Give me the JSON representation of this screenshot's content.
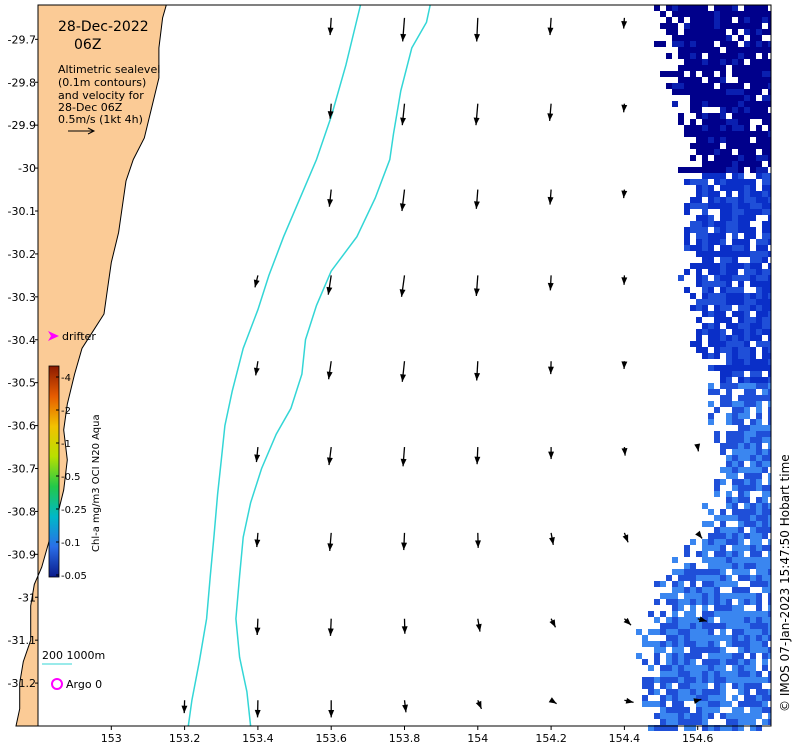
{
  "header": {
    "date": "28-Dec-2022",
    "time": "06Z"
  },
  "info_lines": [
    "Altimetric sealevel",
    "(0.1m contours)",
    "and velocity for",
    "28-Dec 06Z",
    "0.5m/s (1kt 4h)"
  ],
  "legend": {
    "drifter_label": "drifter",
    "scale_label": "200  1000m",
    "argo_label": "Argo 0"
  },
  "colorbar": {
    "title": "Chl-a mg/m3 OCI N20 Aqua",
    "ticks": [
      "4",
      "2",
      "1",
      "0.5",
      "0.25",
      "0.1",
      "0.05"
    ],
    "colors": [
      "#8b1a00",
      "#e65c00",
      "#f2c200",
      "#b8e000",
      "#22c84a",
      "#00b8c8",
      "#2a6ee8",
      "#0a1a8a"
    ]
  },
  "credit": "© IMOS 07-Jan-2023 15:47:50 Hobart time",
  "colors": {
    "land": "#fbcb96",
    "contour": "#33d6d6",
    "ocean": "#ffffff",
    "chl_dark": "#00008b",
    "chl_mid": "#1f4fd8",
    "chl_light": "#3a86f0",
    "drifter": "#ff00ff",
    "argo": "#ff00ff"
  },
  "axes": {
    "x_range": [
      152.8,
      154.8
    ],
    "y_range": [
      -31.3,
      -29.62
    ],
    "x_ticks": [
      {
        "value": 153,
        "label": "153"
      },
      {
        "value": 153.2,
        "label": "153.2"
      },
      {
        "value": 153.4,
        "label": "153.4"
      },
      {
        "value": 153.6,
        "label": "153.6"
      },
      {
        "value": 153.8,
        "label": "153.8"
      },
      {
        "value": 154,
        "label": "154"
      },
      {
        "value": 154.2,
        "label": "154.2"
      },
      {
        "value": 154.4,
        "label": "154.4"
      },
      {
        "value": 154.6,
        "label": "154.6"
      }
    ],
    "y_ticks": [
      {
        "value": -29.7,
        "label": "-29.7"
      },
      {
        "value": -29.8,
        "label": "-29.8"
      },
      {
        "value": -29.9,
        "label": "-29.9"
      },
      {
        "value": -30,
        "label": "-30"
      },
      {
        "value": -30.1,
        "label": "-30.1"
      },
      {
        "value": -30.2,
        "label": "-30.2"
      },
      {
        "value": -30.3,
        "label": "-30.3"
      },
      {
        "value": -30.4,
        "label": "-30.4"
      },
      {
        "value": -30.5,
        "label": "-30.5"
      },
      {
        "value": -30.6,
        "label": "-30.6"
      },
      {
        "value": -30.7,
        "label": "-30.7"
      },
      {
        "value": -30.8,
        "label": "-30.8"
      },
      {
        "value": -30.9,
        "label": "-30.9"
      },
      {
        "value": -31,
        "label": "-31"
      },
      {
        "value": -31.1,
        "label": "-31.1"
      },
      {
        "value": -31.2,
        "label": "-31.2"
      }
    ]
  },
  "coast": [
    [
      153.15,
      -29.62
    ],
    [
      153.14,
      -29.65
    ],
    [
      153.13,
      -29.72
    ],
    [
      153.13,
      -29.79
    ],
    [
      153.11,
      -29.86
    ],
    [
      153.09,
      -29.93
    ],
    [
      153.06,
      -29.98
    ],
    [
      153.04,
      -30.03
    ],
    [
      153.03,
      -30.09
    ],
    [
      153.02,
      -30.15
    ],
    [
      153.0,
      -30.22
    ],
    [
      152.99,
      -30.28
    ],
    [
      152.98,
      -30.34
    ],
    [
      152.95,
      -30.38
    ],
    [
      152.92,
      -30.42
    ],
    [
      152.9,
      -30.48
    ],
    [
      152.88,
      -30.55
    ],
    [
      152.87,
      -30.61
    ],
    [
      152.88,
      -30.68
    ],
    [
      152.87,
      -30.75
    ],
    [
      152.85,
      -30.82
    ],
    [
      152.83,
      -30.87
    ],
    [
      152.81,
      -30.93
    ],
    [
      152.79,
      -30.97
    ],
    [
      152.78,
      -31.02
    ],
    [
      152.78,
      -31.1
    ],
    [
      152.76,
      -31.15
    ],
    [
      152.75,
      -31.2
    ],
    [
      152.75,
      -31.26
    ],
    [
      152.74,
      -31.3
    ]
  ],
  "contours": [
    [
      [
        153.68,
        -29.62
      ],
      [
        153.64,
        -29.76
      ],
      [
        153.6,
        -29.88
      ],
      [
        153.56,
        -29.98
      ],
      [
        153.52,
        -30.06
      ],
      [
        153.47,
        -30.16
      ],
      [
        153.43,
        -30.25
      ],
      [
        153.4,
        -30.33
      ],
      [
        153.36,
        -30.42
      ],
      [
        153.33,
        -30.52
      ],
      [
        153.31,
        -30.6
      ],
      [
        153.3,
        -30.68
      ],
      [
        153.29,
        -30.76
      ],
      [
        153.28,
        -30.86
      ],
      [
        153.27,
        -30.95
      ],
      [
        153.26,
        -31.05
      ],
      [
        153.24,
        -31.15
      ],
      [
        153.22,
        -31.24
      ],
      [
        153.21,
        -31.3
      ]
    ],
    [
      [
        153.87,
        -29.62
      ],
      [
        153.86,
        -29.66
      ],
      [
        153.82,
        -29.72
      ],
      [
        153.79,
        -29.82
      ],
      [
        153.77,
        -29.92
      ],
      [
        153.76,
        -29.98
      ],
      [
        153.72,
        -30.07
      ],
      [
        153.67,
        -30.16
      ],
      [
        153.6,
        -30.24
      ],
      [
        153.56,
        -30.32
      ],
      [
        153.53,
        -30.4
      ],
      [
        153.52,
        -30.48
      ],
      [
        153.49,
        -30.56
      ],
      [
        153.45,
        -30.62
      ],
      [
        153.41,
        -30.7
      ],
      [
        153.38,
        -30.78
      ],
      [
        153.36,
        -30.86
      ],
      [
        153.35,
        -30.95
      ],
      [
        153.34,
        -31.05
      ],
      [
        153.35,
        -31.14
      ],
      [
        153.37,
        -31.22
      ],
      [
        153.38,
        -31.3
      ]
    ]
  ],
  "vectors": [
    {
      "lon": 153.6,
      "lat": -29.65,
      "u": -0.003,
      "v": -0.04
    },
    {
      "lon": 153.8,
      "lat": -29.65,
      "u": -0.005,
      "v": -0.055
    },
    {
      "lon": 154.0,
      "lat": -29.65,
      "u": -0.003,
      "v": -0.055
    },
    {
      "lon": 154.2,
      "lat": -29.65,
      "u": -0.003,
      "v": -0.04
    },
    {
      "lon": 154.4,
      "lat": -29.65,
      "u": -0.002,
      "v": -0.025
    },
    {
      "lon": 153.6,
      "lat": -29.85,
      "u": -0.003,
      "v": -0.035
    },
    {
      "lon": 153.8,
      "lat": -29.85,
      "u": -0.006,
      "v": -0.05
    },
    {
      "lon": 154.0,
      "lat": -29.85,
      "u": -0.005,
      "v": -0.05
    },
    {
      "lon": 154.2,
      "lat": -29.85,
      "u": -0.004,
      "v": -0.04
    },
    {
      "lon": 154.4,
      "lat": -29.85,
      "u": -0.002,
      "v": -0.02
    },
    {
      "lon": 153.6,
      "lat": -30.05,
      "u": -0.005,
      "v": -0.04
    },
    {
      "lon": 153.8,
      "lat": -30.05,
      "u": -0.007,
      "v": -0.05
    },
    {
      "lon": 154.0,
      "lat": -30.05,
      "u": -0.004,
      "v": -0.045
    },
    {
      "lon": 154.2,
      "lat": -30.05,
      "u": -0.003,
      "v": -0.035
    },
    {
      "lon": 154.4,
      "lat": -30.05,
      "u": -0.002,
      "v": -0.02
    },
    {
      "lon": 153.4,
      "lat": -30.25,
      "u": -0.008,
      "v": -0.028
    },
    {
      "lon": 153.6,
      "lat": -30.25,
      "u": -0.008,
      "v": -0.045
    },
    {
      "lon": 153.8,
      "lat": -30.25,
      "u": -0.008,
      "v": -0.05
    },
    {
      "lon": 154.0,
      "lat": -30.25,
      "u": -0.004,
      "v": -0.048
    },
    {
      "lon": 154.2,
      "lat": -30.25,
      "u": -0.002,
      "v": -0.035
    },
    {
      "lon": 154.4,
      "lat": -30.25,
      "u": -0.001,
      "v": -0.022
    },
    {
      "lon": 153.4,
      "lat": -30.45,
      "u": -0.006,
      "v": -0.033
    },
    {
      "lon": 153.6,
      "lat": -30.45,
      "u": -0.007,
      "v": -0.042
    },
    {
      "lon": 153.8,
      "lat": -30.45,
      "u": -0.006,
      "v": -0.048
    },
    {
      "lon": 154.0,
      "lat": -30.45,
      "u": -0.003,
      "v": -0.045
    },
    {
      "lon": 154.2,
      "lat": -30.45,
      "u": -0.001,
      "v": -0.03
    },
    {
      "lon": 154.4,
      "lat": -30.45,
      "u": -0.001,
      "v": -0.018
    },
    {
      "lon": 153.4,
      "lat": -30.65,
      "u": -0.004,
      "v": -0.035
    },
    {
      "lon": 153.6,
      "lat": -30.65,
      "u": -0.006,
      "v": -0.042
    },
    {
      "lon": 153.8,
      "lat": -30.65,
      "u": -0.004,
      "v": -0.045
    },
    {
      "lon": 154.0,
      "lat": -30.65,
      "u": -0.002,
      "v": -0.04
    },
    {
      "lon": 154.2,
      "lat": -30.65,
      "u": 0.0,
      "v": -0.028
    },
    {
      "lon": 154.4,
      "lat": -30.65,
      "u": 0.002,
      "v": -0.02
    },
    {
      "lon": 154.6,
      "lat": -30.65,
      "u": 0.002,
      "v": -0.01
    },
    {
      "lon": 153.4,
      "lat": -30.85,
      "u": -0.003,
      "v": -0.033
    },
    {
      "lon": 153.6,
      "lat": -30.85,
      "u": -0.004,
      "v": -0.042
    },
    {
      "lon": 153.8,
      "lat": -30.85,
      "u": -0.002,
      "v": -0.04
    },
    {
      "lon": 154.0,
      "lat": -30.85,
      "u": 0.001,
      "v": -0.035
    },
    {
      "lon": 154.2,
      "lat": -30.85,
      "u": 0.006,
      "v": -0.028
    },
    {
      "lon": 154.4,
      "lat": -30.85,
      "u": 0.01,
      "v": -0.022
    },
    {
      "lon": 154.6,
      "lat": -30.85,
      "u": 0.012,
      "v": -0.013
    },
    {
      "lon": 153.4,
      "lat": -31.05,
      "u": -0.002,
      "v": -0.038
    },
    {
      "lon": 153.6,
      "lat": -31.05,
      "u": -0.002,
      "v": -0.04
    },
    {
      "lon": 153.8,
      "lat": -31.05,
      "u": 0.001,
      "v": -0.035
    },
    {
      "lon": 154.0,
      "lat": -31.05,
      "u": 0.006,
      "v": -0.03
    },
    {
      "lon": 154.2,
      "lat": -31.05,
      "u": 0.012,
      "v": -0.02
    },
    {
      "lon": 154.4,
      "lat": -31.05,
      "u": 0.018,
      "v": -0.015
    },
    {
      "lon": 154.6,
      "lat": -31.05,
      "u": 0.025,
      "v": -0.006
    },
    {
      "lon": 153.2,
      "lat": -31.24,
      "u": -0.001,
      "v": -0.03
    },
    {
      "lon": 153.4,
      "lat": -31.24,
      "u": -0.001,
      "v": -0.04
    },
    {
      "lon": 153.6,
      "lat": -31.24,
      "u": 0.0,
      "v": -0.04
    },
    {
      "lon": 153.8,
      "lat": -31.24,
      "u": 0.004,
      "v": -0.028
    },
    {
      "lon": 154.0,
      "lat": -31.24,
      "u": 0.01,
      "v": -0.02
    },
    {
      "lon": 154.2,
      "lat": -31.24,
      "u": 0.015,
      "v": -0.008
    },
    {
      "lon": 154.4,
      "lat": -31.24,
      "u": 0.025,
      "v": -0.005
    },
    {
      "lon": 154.6,
      "lat": -31.24,
      "u": 0.01,
      "v": 0.002
    }
  ],
  "chl_mask": [
    {
      "lat": -29.62,
      "west": 154.47
    },
    {
      "lat": -29.8,
      "west": 154.52
    },
    {
      "lat": -29.98,
      "west": 154.56
    },
    {
      "lat": -30.12,
      "west": 154.55
    },
    {
      "lat": -30.3,
      "west": 154.56
    },
    {
      "lat": -30.48,
      "west": 154.61
    },
    {
      "lat": -30.65,
      "west": 154.64
    },
    {
      "lat": -30.82,
      "west": 154.62
    },
    {
      "lat": -30.95,
      "west": 154.48
    },
    {
      "lat": -31.1,
      "west": 154.44
    },
    {
      "lat": -31.3,
      "west": 154.45
    }
  ]
}
